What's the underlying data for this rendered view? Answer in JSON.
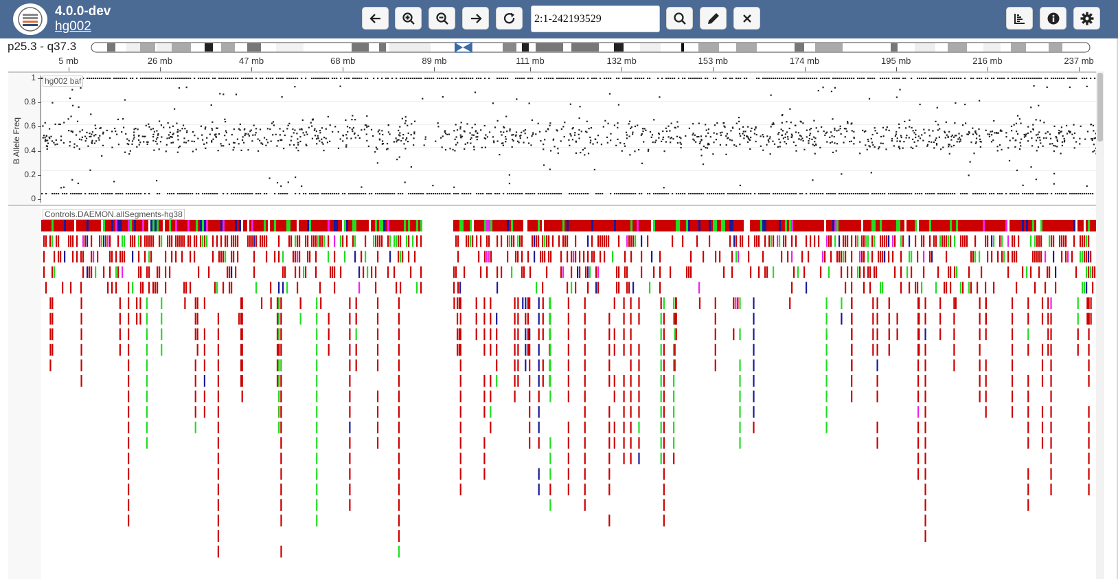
{
  "header": {
    "version": "4.0.0-dev",
    "genome": "hg002",
    "locus": "2:1-242193529",
    "buttons": [
      {
        "name": "back-button",
        "icon": "arrow-left-icon"
      },
      {
        "name": "zoom-in-button",
        "icon": "zoom-in-icon"
      },
      {
        "name": "zoom-out-button",
        "icon": "zoom-out-icon"
      },
      {
        "name": "forward-button",
        "icon": "arrow-right-icon"
      },
      {
        "name": "refresh-button",
        "icon": "refresh-icon"
      },
      {
        "name": "search-button",
        "icon": "search-icon"
      },
      {
        "name": "annotate-button",
        "icon": "pen-icon"
      },
      {
        "name": "clear-button",
        "icon": "close-icon"
      },
      {
        "name": "track-settings-button",
        "icon": "bar-chart-icon"
      },
      {
        "name": "info-button",
        "icon": "info-icon"
      },
      {
        "name": "settings-button",
        "icon": "gear-icon"
      }
    ]
  },
  "chromosome": {
    "range_label": "p25.3 - q37.3",
    "length_mb": 242.19
  },
  "ruler": {
    "ticks": [
      {
        "mb": 5,
        "label": "5 mb"
      },
      {
        "mb": 26,
        "label": "26 mb"
      },
      {
        "mb": 47,
        "label": "47 mb"
      },
      {
        "mb": 68,
        "label": "68 mb"
      },
      {
        "mb": 89,
        "label": "89 mb"
      },
      {
        "mb": 111,
        "label": "111 mb"
      },
      {
        "mb": 132,
        "label": "132 mb"
      },
      {
        "mb": 153,
        "label": "153 mb"
      },
      {
        "mb": 174,
        "label": "174 mb"
      },
      {
        "mb": 195,
        "label": "195 mb"
      },
      {
        "mb": 216,
        "label": "216 mb"
      },
      {
        "mb": 237,
        "label": "237 mb"
      }
    ]
  },
  "tracks": {
    "baf": {
      "name": "hg002 baf",
      "ylabel": "B Allele Freq",
      "yticks": [
        "1",
        "0.8",
        "0.6",
        "0.4",
        "0.2",
        "0"
      ],
      "point_color": "#222222"
    },
    "segments": {
      "name": "Controls.DAEMON.allSegments-hg38",
      "colors": [
        "#cc0000",
        "#22dd22",
        "#1a1a99",
        "#ee22ee"
      ]
    }
  },
  "colors": {
    "header_bg": "#4b6a94",
    "centromere": "#3f6aa3"
  }
}
